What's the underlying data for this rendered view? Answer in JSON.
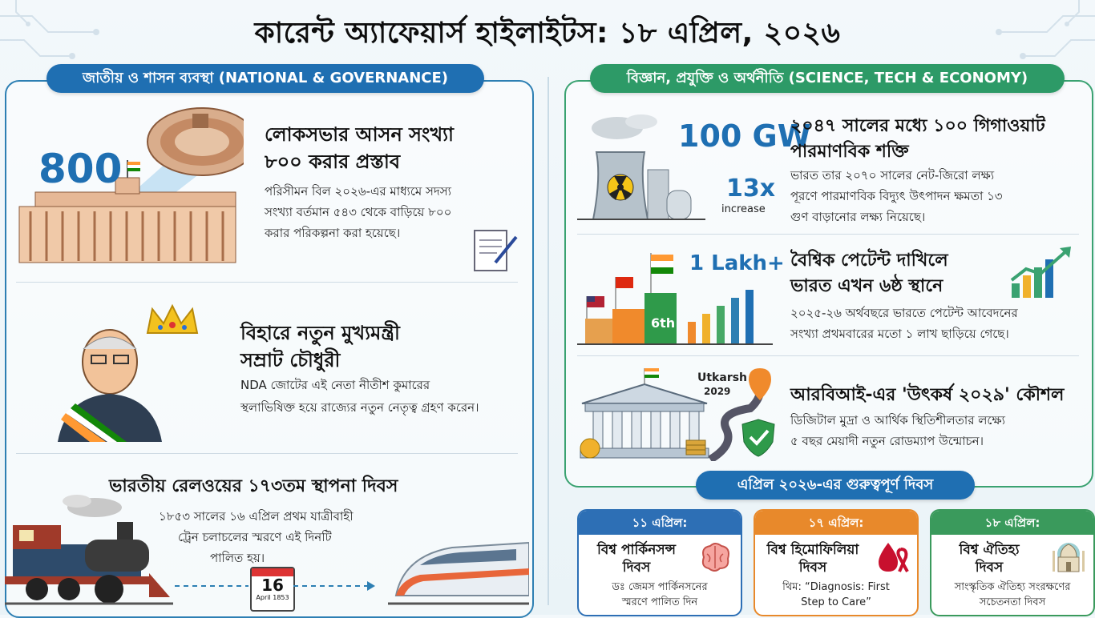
{
  "title": "কারেন্ট অ্যাফেয়ার্স হাইলাইটস: ১৮ এপ্রিল, ২০২৬",
  "left_section": {
    "header": "জাতীয় ও শাসন ব্যবস্থা (NATIONAL & GOVERNANCE)",
    "items": [
      {
        "badge": "800",
        "title_line1": "লোকসভার আসন সংখ্যা",
        "title_line2": "৮০০ করার প্রস্তাব",
        "desc_line1": "পরিসীমন বিল ২০২৬-এর মাধ্যমে সদস্য",
        "desc_line2": "সংখ্যা বর্তমান ৫৪৩ থেকে বাড়িয়ে ৮০০",
        "desc_line3": "করার পরিকল্পনা করা হয়েছে।"
      },
      {
        "title_line1": "বিহারে নতুন মুখ্যমন্ত্রী",
        "title_line2": "সম্রাট চৌধুরী",
        "desc_line1": "NDA জোটের এই নেতা নীতীশ কুমারের",
        "desc_line2": "স্থলাভিষিক্ত হয়ে রাজ্যের নতুন নেতৃত্ব গ্রহণ করেন।"
      },
      {
        "title": "ভারতীয় রেলওয়ের ১৭৩তম স্থাপনা দিবস",
        "desc_line1": "১৮৫৩ সালের ১৬ এপ্রিল প্রথম যাত্রীবাহী",
        "desc_line2": "ট্রেন চলাচলের স্মরণে এই দিনটি",
        "desc_line3": "পালিত হয়।",
        "calendar_day": "16",
        "calendar_sub": "April 1853"
      }
    ]
  },
  "right_section": {
    "header": "বিজ্ঞান, প্রযুক্তি ও অর্থনীতি (SCIENCE, TECH & ECONOMY)",
    "items": [
      {
        "badge": "100 GW",
        "badge2": "13x",
        "badge2_sub": "increase",
        "title_line1": "২০৪৭ সালের মধ্যে ১০০ গিগাওয়াট",
        "title_line2": "পারমাণবিক শক্তি",
        "desc_line1": "ভারত তার ২০৭০ সালের নেট-জিরো লক্ষ্য",
        "desc_line2": "পূরণে পারমাণবিক বিদ্যুৎ উৎপাদন ক্ষমতা ১৩",
        "desc_line3": "গুণ বাড়ানোর লক্ষ্য নিয়েছে।"
      },
      {
        "badge": "1 Lakh+",
        "rank": "6th",
        "title_line1": "বৈশ্বিক পেটেন্ট দাখিলে",
        "title_line2": "ভারত এখন ৬ষ্ঠ স্থানে",
        "desc_line1": "২০২৫-২৬ অর্থবছরে ভারতে পেটেন্ট আবেদনের",
        "desc_line2": "সংখ্যা প্রথমবারের মতো ১ লাখ ছাড়িয়ে গেছে।"
      },
      {
        "sign_line1": "Utkarsh",
        "sign_line2": "2029",
        "title": "আরবিআই-এর 'উৎকর্ষ ২০২৯' কৌশল",
        "desc_line1": "ডিজিটাল মুদ্রা ও আর্থিক স্থিতিশীলতার লক্ষ্যে",
        "desc_line2": "৫ বছর মেয়াদী নতুন রোডম্যাপ উন্মোচন।"
      }
    ]
  },
  "dates": {
    "header": "এপ্রিল ২০২৬-এর গুরুত্বপূর্ণ দিবস",
    "cards": [
      {
        "date": "১১ এপ্রিল:",
        "title_line1": "বিশ্ব পার্কিনসন্স",
        "title_line2": "দিবস",
        "desc_line1": "ডঃ জেমস পার্কিনসনের",
        "desc_line2": "স্মরণে পালিত দিন",
        "color": "#2d6fb5"
      },
      {
        "date": "১৭ এপ্রিল:",
        "title_line1": "বিশ্ব হিমোফিলিয়া",
        "title_line2": "দিবস",
        "desc_line1": "থিম: “Diagnosis: First",
        "desc_line2": "Step to Care”",
        "color": "#e8892b"
      },
      {
        "date": "১৮ এপ্রিল:",
        "title_line1": "বিশ্ব ঐতিহ্য",
        "title_line2": "দিবস",
        "desc_line1": "সাংস্কৃতিক ঐতিহ্য সংরক্ষণের",
        "desc_line2": "সচেতনতা দিবস",
        "color": "#3a9a5c"
      }
    ]
  }
}
